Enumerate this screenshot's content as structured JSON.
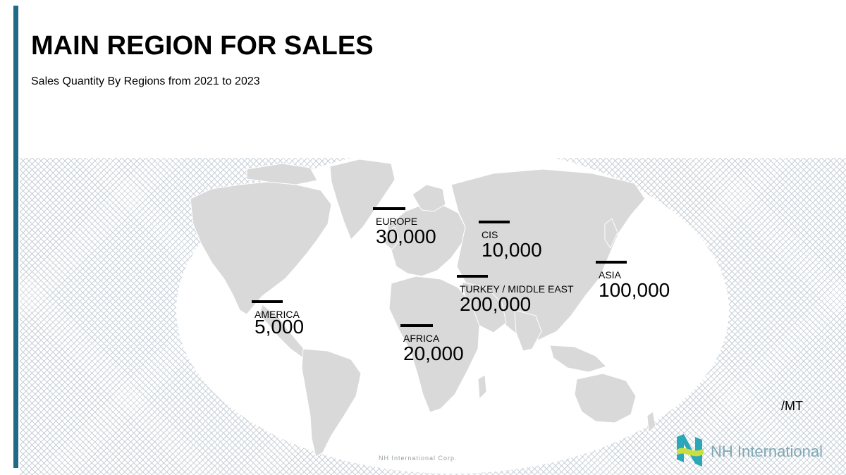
{
  "title": "MAIN REGION FOR SALES",
  "subtitle": "Sales Quantity By Regions from 2021 to 2023",
  "unit": "/MT",
  "watermark": "NH International Corp.",
  "logo_text": "NH International",
  "colors": {
    "accent": "#1f6a87",
    "land": "#d9d9d9",
    "ocean": "#ffffff",
    "logo_teal": "#2aa7b8",
    "logo_lime": "#c9de3f"
  },
  "regions": [
    {
      "name": "EUROPE",
      "value": "30,000"
    },
    {
      "name": "CIS",
      "value": "10,000"
    },
    {
      "name": "ASIA",
      "value": "100,000"
    },
    {
      "name": "TURKEY / MIDDLE EAST",
      "value": "200,000"
    },
    {
      "name": "AMERICA",
      "value": "5,000"
    },
    {
      "name": "AFRICA",
      "value": "20,000"
    }
  ]
}
